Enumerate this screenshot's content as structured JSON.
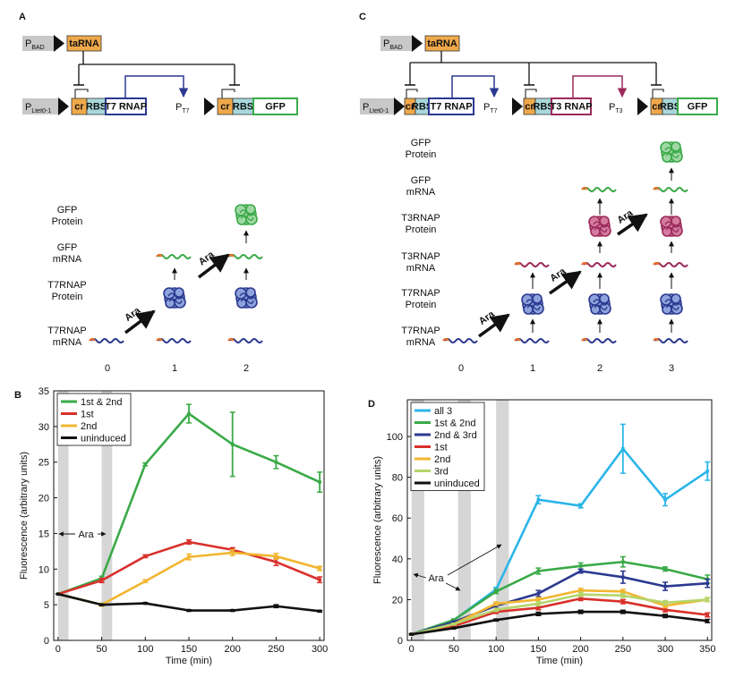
{
  "diagram_a": {
    "label": "A",
    "promoters": [
      {
        "main": "P",
        "sub": "BAD"
      },
      {
        "main": "P",
        "sub": "Ltet0-1"
      },
      {
        "main": "P",
        "sub": "T7"
      }
    ],
    "genes": [
      "taRNA",
      "cr",
      "RBS",
      "T7 RNAP",
      "cr",
      "RBS",
      "GFP"
    ],
    "row_labels": [
      [
        "GFP",
        "Protein"
      ],
      [
        "GFP",
        "mRNA"
      ],
      [
        "T7RNAP",
        "Protein"
      ],
      [
        "T7RNAP",
        "mRNA"
      ]
    ],
    "columns": [
      "0",
      "1",
      "2"
    ],
    "inducer": "Ara"
  },
  "diagram_c": {
    "label": "C",
    "promoters": [
      {
        "main": "P",
        "sub": "BAD"
      },
      {
        "main": "P",
        "sub": "Ltet0-1"
      },
      {
        "main": "P",
        "sub": "T7"
      },
      {
        "main": "P",
        "sub": "T3"
      }
    ],
    "genes": [
      "taRNA",
      "cr",
      "RBS",
      "T7 RNAP",
      "cr",
      "RBS",
      "T3 RNAP",
      "cr",
      "RBS",
      "GFP"
    ],
    "row_labels": [
      [
        "GFP",
        "Protein"
      ],
      [
        "GFP",
        "mRNA"
      ],
      [
        "T3RNAP",
        "Protein"
      ],
      [
        "T3RNAP",
        "mRNA"
      ],
      [
        "T7RNAP",
        "Protein"
      ],
      [
        "T7RNAP",
        "mRNA"
      ]
    ],
    "columns": [
      "0",
      "1",
      "2",
      "3"
    ],
    "inducer": "Ara"
  },
  "chart_data": [
    {
      "type": "line",
      "label": "B",
      "xlabel": "Time (min)",
      "ylabel": "Fluorescence (arbitrary units)",
      "annotation": "Ara",
      "legend": "upper left",
      "x": [
        0,
        50,
        100,
        150,
        200,
        250,
        300
      ],
      "xlim": [
        -5,
        305
      ],
      "ylim": [
        0,
        35
      ],
      "xticks": [
        0,
        50,
        100,
        150,
        200,
        250,
        300
      ],
      "yticks": [
        0,
        5,
        10,
        15,
        20,
        25,
        30,
        35
      ],
      "shading": [
        [
          0,
          12
        ],
        [
          50,
          62
        ]
      ],
      "series": [
        {
          "name": "1st & 2nd",
          "color": "#3aaa48",
          "values": [
            6.5,
            8.7,
            24.7,
            31.8,
            27.5,
            25,
            22.2
          ],
          "errors": [
            0,
            0.3,
            0.2,
            1.3,
            4.5,
            0.9,
            1.4
          ]
        },
        {
          "name": "1st",
          "color": "#d9302c",
          "values": [
            6.5,
            8.4,
            11.8,
            13.8,
            12.7,
            11,
            8.5
          ],
          "errors": [
            0,
            0.3,
            0.2,
            0.3,
            0.3,
            0.5,
            0.4
          ]
        },
        {
          "name": "2nd",
          "color": "#f2b630",
          "values": [
            6.5,
            5,
            8.3,
            11.7,
            12.3,
            11.8,
            10.1
          ],
          "errors": [
            0,
            0.2,
            0.2,
            0.4,
            0.4,
            0.4,
            0.3
          ]
        },
        {
          "name": "uninduced",
          "color": "#111111",
          "values": [
            6.5,
            5,
            5.2,
            4.2,
            4.2,
            4.8,
            4.1
          ],
          "errors": [
            0,
            0.1,
            0.1,
            0.1,
            0.1,
            0.2,
            0.1
          ]
        }
      ]
    },
    {
      "type": "line",
      "label": "D",
      "xlabel": "Time (min)",
      "ylabel": "Fluorescence (arbitrary units)",
      "annotation": "Ara",
      "legend": "upper left",
      "x": [
        0,
        50,
        100,
        150,
        200,
        250,
        300,
        350
      ],
      "xlim": [
        -5,
        355
      ],
      "ylim": [
        0,
        118
      ],
      "xticks": [
        0,
        50,
        100,
        150,
        200,
        250,
        300,
        350
      ],
      "yticks": [
        0,
        20,
        40,
        60,
        80,
        100
      ],
      "shading": [
        [
          0,
          15
        ],
        [
          55,
          70
        ],
        [
          100,
          115
        ]
      ],
      "series": [
        {
          "name": "all 3",
          "color": "#2bb5e8",
          "values": [
            3,
            10,
            25,
            69,
            66,
            94,
            69,
            83
          ],
          "errors": [
            0.3,
            0.5,
            1,
            2,
            1,
            12,
            3,
            4.5
          ]
        },
        {
          "name": "1st & 2nd",
          "color": "#3aaa48",
          "values": [
            3,
            10,
            24,
            34,
            36.5,
            38.5,
            35,
            30
          ],
          "errors": [
            0.3,
            0.5,
            1,
            1.5,
            1.5,
            2.5,
            1,
            2
          ]
        },
        {
          "name": "2nd & 3rd",
          "color": "#2b3990",
          "values": [
            3,
            9,
            17,
            23,
            34,
            31,
            26.5,
            28
          ],
          "errors": [
            0.3,
            0.5,
            1,
            1.5,
            1,
            3,
            2,
            2
          ]
        },
        {
          "name": "1st",
          "color": "#d9302c",
          "values": [
            3,
            7,
            14,
            16,
            20.5,
            19,
            15,
            12.5
          ],
          "errors": [
            0.2,
            0.4,
            0.8,
            1,
            1,
            1,
            1,
            1
          ]
        },
        {
          "name": "2nd",
          "color": "#f2b630",
          "values": [
            3,
            8,
            18,
            20,
            24.5,
            24,
            17,
            20
          ],
          "errors": [
            0.2,
            0.4,
            0.8,
            1,
            1,
            1,
            1,
            1
          ]
        },
        {
          "name": "3rd",
          "color": "#b5d56a",
          "values": [
            3,
            8,
            15,
            18,
            22.5,
            22,
            18.5,
            20
          ],
          "errors": [
            0.2,
            0.4,
            0.8,
            1,
            1,
            1,
            1,
            1
          ]
        },
        {
          "name": "uninduced",
          "color": "#111111",
          "values": [
            3,
            6,
            10,
            13,
            14,
            14,
            12,
            9.5
          ],
          "errors": [
            0.2,
            0.3,
            0.5,
            0.8,
            0.8,
            0.8,
            0.8,
            0.8
          ]
        }
      ]
    }
  ]
}
